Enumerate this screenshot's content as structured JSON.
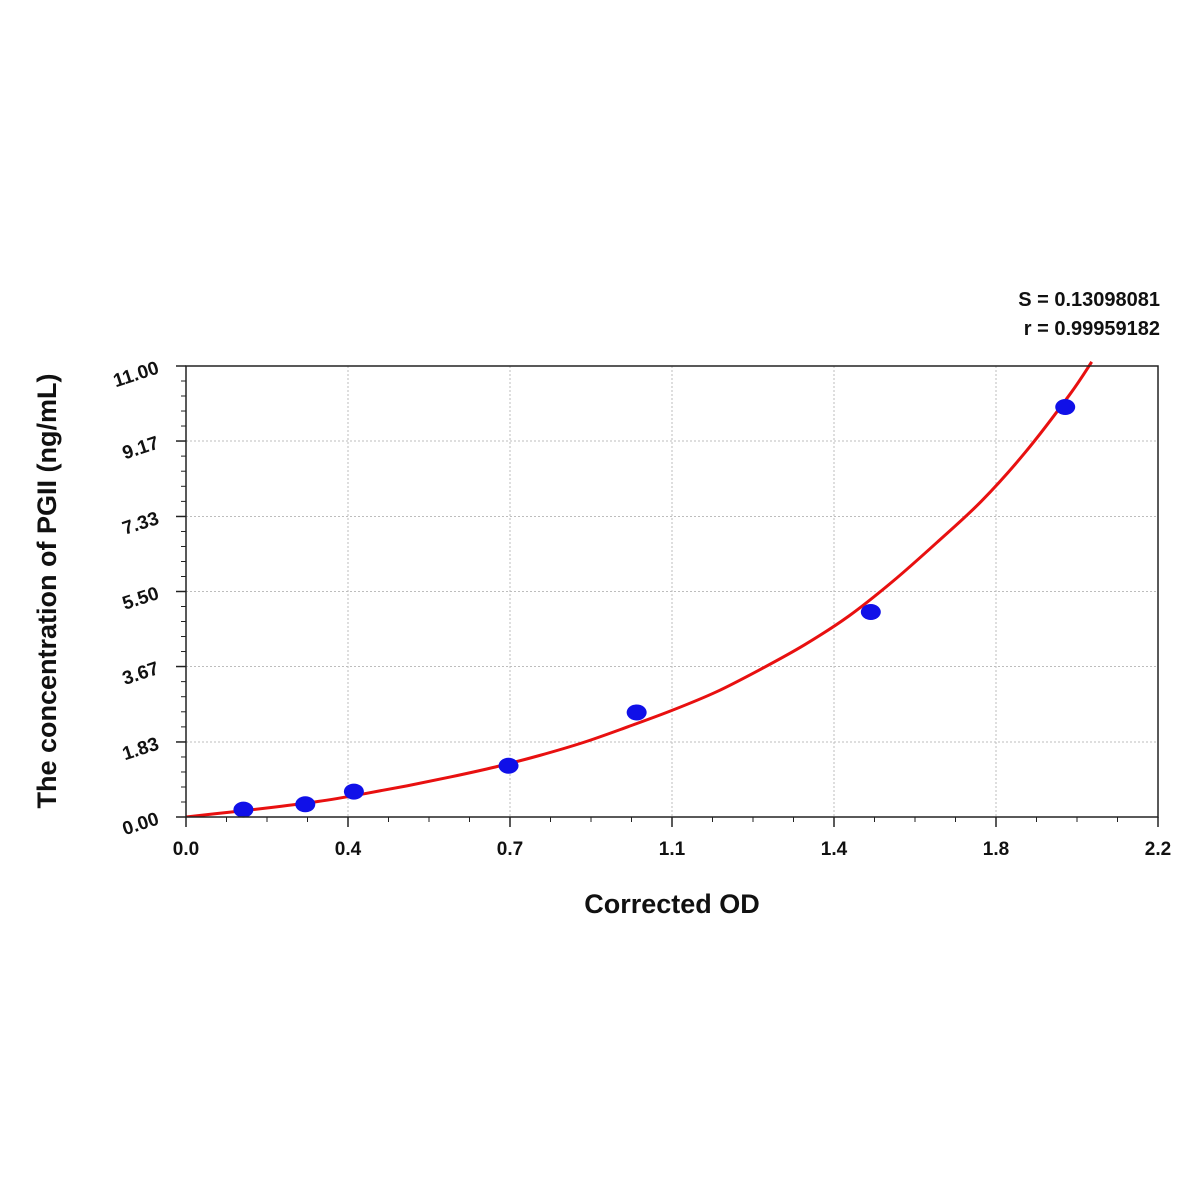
{
  "chart_data": {
    "type": "scatter",
    "xlabel": "Corrected OD",
    "ylabel": "The concentration of PGII (ng/mL)",
    "xlim": [
      0.0,
      2.2
    ],
    "ylim": [
      0.0,
      11.0
    ],
    "x_ticks": [
      0.0,
      0.4,
      0.7,
      1.1,
      1.4,
      1.8,
      2.2
    ],
    "x_tick_labels": [
      "0.0",
      "0.4",
      "0.7",
      "1.1",
      "1.4",
      "1.8",
      "2.2"
    ],
    "y_ticks": [
      0.0,
      1.83,
      3.67,
      5.5,
      7.33,
      9.17,
      11.0
    ],
    "y_tick_labels": [
      "0.00",
      "1.83",
      "3.67",
      "5.50",
      "7.33",
      "9.17",
      "11.00"
    ],
    "grid": true,
    "stats": {
      "s_label": "S = 0.13098081",
      "r_label": "r = 0.99959182"
    },
    "series": [
      {
        "kind": "points",
        "color": "#1010e8",
        "x": [
          0.13,
          0.27,
          0.38,
          0.73,
          1.02,
          1.55,
          1.99
        ],
        "y": [
          0.18,
          0.31,
          0.62,
          1.25,
          2.55,
          5.0,
          10.0
        ]
      },
      {
        "kind": "fit",
        "color": "#e81010",
        "x": [
          0.0,
          0.1,
          0.2,
          0.3,
          0.4,
          0.5,
          0.6,
          0.7,
          0.8,
          0.9,
          1.0,
          1.1,
          1.2,
          1.3,
          1.4,
          1.5,
          1.6,
          1.7,
          1.8,
          1.9,
          2.0,
          2.05
        ],
        "y": [
          0.0,
          0.12,
          0.24,
          0.38,
          0.56,
          0.76,
          0.98,
          1.22,
          1.5,
          1.82,
          2.2,
          2.6,
          3.05,
          3.6,
          4.2,
          4.9,
          5.75,
          6.7,
          7.7,
          8.9,
          10.3,
          11.1
        ]
      }
    ]
  }
}
